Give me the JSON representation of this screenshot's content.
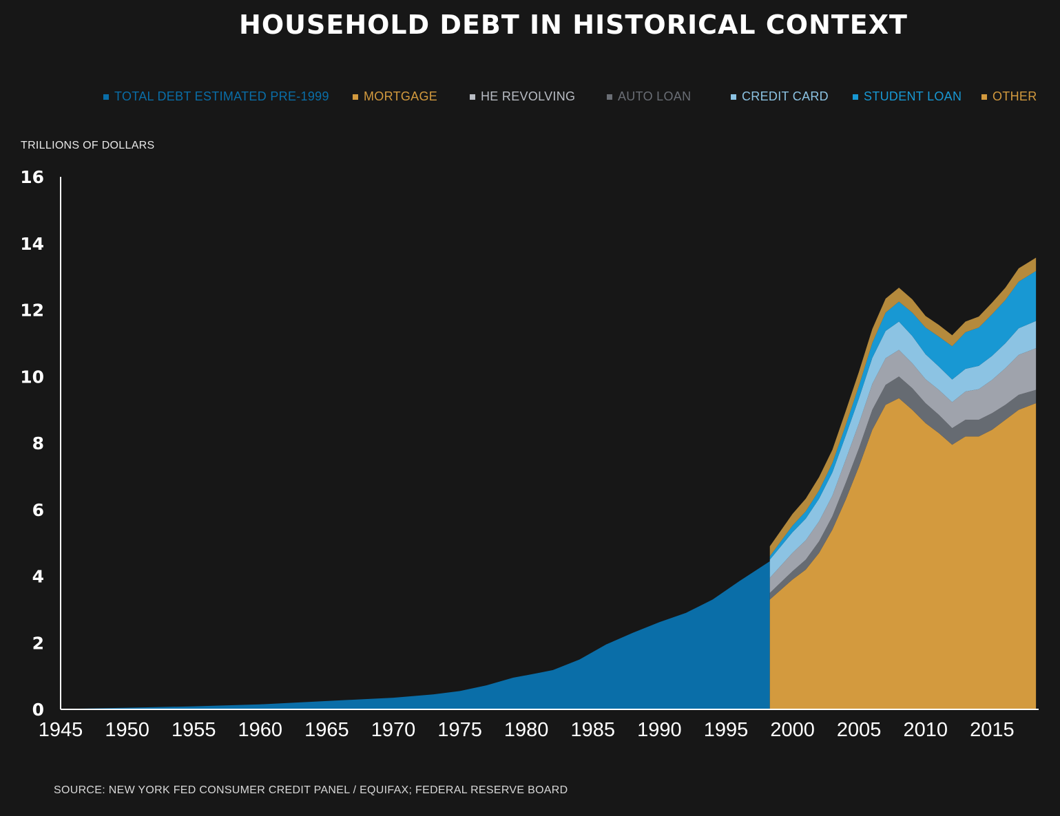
{
  "chart_data": {
    "type": "area",
    "title": "HOUSEHOLD DEBT IN HISTORICAL CONTEXT",
    "ylabel": "TRILLIONS OF DOLLARS",
    "xlabel": "",
    "source": "SOURCE: NEW YORK FED CONSUMER CREDIT PANEL / EQUIFAX; FEDERAL RESERVE BOARD",
    "xlim": [
      1945,
      2018.5
    ],
    "ylim": [
      0,
      16
    ],
    "x_ticks": [
      "1945",
      "1950",
      "1955",
      "1960",
      "1965",
      "1970",
      "1975",
      "1980",
      "1985",
      "1990",
      "1995",
      "2000",
      "2005",
      "2010",
      "2015"
    ],
    "y_ticks": [
      "0",
      "2",
      "4",
      "6",
      "8",
      "10",
      "12",
      "14",
      "16"
    ],
    "grid": false,
    "legend_position": "top",
    "legend": [
      {
        "label": "TOTAL DEBT ESTIMATED PRE-1999",
        "color": "#0a6ea8"
      },
      {
        "label": "MORTGAGE",
        "color": "#d39a3e"
      },
      {
        "label": "HE REVOLVING",
        "color": "#666b72"
      },
      {
        "label": "AUTO LOAN",
        "color": "#9fa3ac"
      },
      {
        "label": "CREDIT CARD",
        "color": "#8cc3e3"
      },
      {
        "label": "STUDENT LOAN",
        "color": "#1898d3"
      },
      {
        "label": "OTHER",
        "color": "#b58a3c"
      }
    ],
    "pre_1999": {
      "name": "TOTAL DEBT ESTIMATED PRE-1999",
      "color": "#0a6ea8",
      "x": [
        1945,
        1950,
        1955,
        1960,
        1965,
        1970,
        1973,
        1975,
        1977,
        1979,
        1981,
        1982,
        1984,
        1986,
        1988,
        1990,
        1992,
        1994,
        1996,
        1998.3
      ],
      "values": [
        0.01,
        0.05,
        0.09,
        0.15,
        0.25,
        0.35,
        0.45,
        0.55,
        0.72,
        0.95,
        1.1,
        1.18,
        1.5,
        1.95,
        2.3,
        2.62,
        2.9,
        3.3,
        3.85,
        4.45
      ]
    },
    "stacked": {
      "x": [
        1998.3,
        2000,
        2001,
        2002,
        2003,
        2004,
        2005,
        2006,
        2007,
        2008,
        2009,
        2010,
        2011,
        2012,
        2013,
        2014,
        2015,
        2016,
        2017,
        2018.3
      ],
      "series": [
        {
          "name": "MORTGAGE",
          "color": "#d39a3e",
          "values": [
            3.3,
            3.9,
            4.2,
            4.7,
            5.4,
            6.3,
            7.3,
            8.4,
            9.15,
            9.35,
            9.0,
            8.6,
            8.3,
            7.95,
            8.2,
            8.2,
            8.4,
            8.7,
            9.0,
            9.2
          ]
        },
        {
          "name": "HE REVOLVING",
          "color": "#666b72",
          "values": [
            0.2,
            0.25,
            0.3,
            0.35,
            0.4,
            0.5,
            0.55,
            0.6,
            0.6,
            0.65,
            0.65,
            0.6,
            0.55,
            0.5,
            0.5,
            0.5,
            0.5,
            0.45,
            0.45,
            0.4
          ]
        },
        {
          "name": "AUTO LOAN",
          "color": "#9fa3ac",
          "values": [
            0.45,
            0.55,
            0.58,
            0.6,
            0.62,
            0.7,
            0.75,
            0.78,
            0.8,
            0.8,
            0.75,
            0.72,
            0.75,
            0.78,
            0.85,
            0.92,
            1.0,
            1.1,
            1.2,
            1.25
          ]
        },
        {
          "name": "CREDIT CARD",
          "color": "#8cc3e3",
          "values": [
            0.55,
            0.62,
            0.65,
            0.68,
            0.7,
            0.72,
            0.75,
            0.78,
            0.82,
            0.85,
            0.82,
            0.75,
            0.7,
            0.68,
            0.68,
            0.7,
            0.72,
            0.75,
            0.8,
            0.82
          ]
        },
        {
          "name": "STUDENT LOAN",
          "color": "#1898d3",
          "values": [
            0.1,
            0.2,
            0.22,
            0.25,
            0.28,
            0.32,
            0.38,
            0.45,
            0.55,
            0.6,
            0.7,
            0.8,
            0.9,
            1.0,
            1.1,
            1.15,
            1.25,
            1.3,
            1.4,
            1.5
          ]
        },
        {
          "name": "OTHER",
          "color": "#b58a3c",
          "values": [
            0.3,
            0.35,
            0.38,
            0.4,
            0.4,
            0.42,
            0.42,
            0.42,
            0.42,
            0.42,
            0.4,
            0.35,
            0.35,
            0.33,
            0.32,
            0.33,
            0.35,
            0.37,
            0.4,
            0.4
          ]
        }
      ]
    }
  }
}
